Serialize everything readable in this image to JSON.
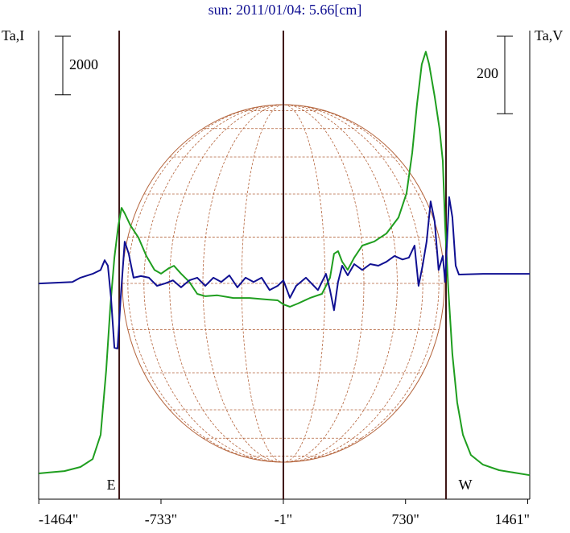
{
  "chart_data": {
    "type": "line",
    "title": "sun: 2011/01/04: 5.66[cm]",
    "ylabel": "Ta,I",
    "y2label": "Ta,V",
    "xlim": [
      -1465,
      1473
    ],
    "ylim": [
      0,
      16000
    ],
    "y2lim": [
      -557,
      653
    ],
    "xticks": [
      {
        "value": -1464,
        "label": "-1464\""
      },
      {
        "value": -733,
        "label": "-733\""
      },
      {
        "value": -1,
        "label": "-1\""
      },
      {
        "value": 730,
        "label": "730\""
      },
      {
        "value": 1461,
        "label": "1461\""
      }
    ],
    "scale_bars": [
      {
        "value": 2000,
        "axis": "y"
      },
      {
        "value": 200,
        "axis": "y2"
      }
    ],
    "markers": [
      {
        "x": -983,
        "label": "E"
      },
      {
        "x": -1
      },
      {
        "x": 972,
        "label": "W"
      }
    ],
    "series": [
      {
        "name": "I",
        "color": "#1f9e1f",
        "axis": "y",
        "x": [
          -1464,
          -1407,
          -1311,
          -1215,
          -1142,
          -1094,
          -1061,
          -1036,
          -1012,
          -988,
          -969,
          -950,
          -916,
          -868,
          -820,
          -772,
          -733,
          -685,
          -656,
          -613,
          -564,
          -516,
          -468,
          -396,
          -300,
          -203,
          -107,
          -35,
          -1,
          38,
          86,
          158,
          230,
          278,
          302,
          326,
          351,
          384,
          423,
          471,
          543,
          615,
          688,
          736,
          770,
          798,
          827,
          851,
          871,
          904,
          933,
          953,
          967,
          986,
          1010,
          1039,
          1073,
          1121,
          1193,
          1290,
          1473
        ],
        "values": [
          880,
          910,
          960,
          1100,
          1370,
          2200,
          4400,
          6600,
          8250,
          9350,
          9950,
          9760,
          9350,
          8930,
          8300,
          7830,
          7700,
          7890,
          7970,
          7700,
          7420,
          7010,
          6930,
          6960,
          6870,
          6870,
          6820,
          6790,
          6650,
          6570,
          6680,
          6870,
          7010,
          7560,
          8380,
          8470,
          8110,
          7830,
          8250,
          8660,
          8800,
          9070,
          9620,
          10450,
          11820,
          13470,
          14850,
          15280,
          14850,
          13750,
          12650,
          11550,
          9350,
          7150,
          4950,
          3300,
          2200,
          1510,
          1180,
          990,
          820
        ]
      },
      {
        "name": "V",
        "color": "#101092",
        "axis": "y2",
        "x": [
          -1464,
          -1263,
          -1215,
          -1142,
          -1094,
          -1070,
          -1051,
          -1032,
          -1012,
          -993,
          -974,
          -950,
          -926,
          -897,
          -853,
          -805,
          -757,
          -709,
          -661,
          -613,
          -564,
          -516,
          -468,
          -420,
          -372,
          -324,
          -276,
          -227,
          -179,
          -131,
          -83,
          -35,
          -1,
          38,
          76,
          134,
          206,
          254,
          278,
          302,
          326,
          351,
          384,
          423,
          471,
          519,
          567,
          615,
          664,
          712,
          750,
          784,
          808,
          832,
          856,
          880,
          904,
          928,
          953,
          967,
          991,
          1010,
          1030,
          1049,
          1193,
          1473
        ],
        "values": [
          0,
          4,
          15,
          25,
          35,
          60,
          46,
          -37,
          -166,
          -168,
          -37,
          108,
          77,
          15,
          19,
          15,
          -6,
          0,
          8,
          -10,
          8,
          15,
          -6,
          15,
          4,
          21,
          -10,
          15,
          4,
          15,
          -17,
          -6,
          8,
          -37,
          -6,
          15,
          -17,
          25,
          -17,
          -69,
          4,
          46,
          21,
          50,
          35,
          50,
          46,
          56,
          71,
          62,
          67,
          98,
          -6,
          46,
          108,
          212,
          160,
          35,
          71,
          4,
          223,
          171,
          46,
          23,
          25,
          25
        ]
      }
    ]
  }
}
